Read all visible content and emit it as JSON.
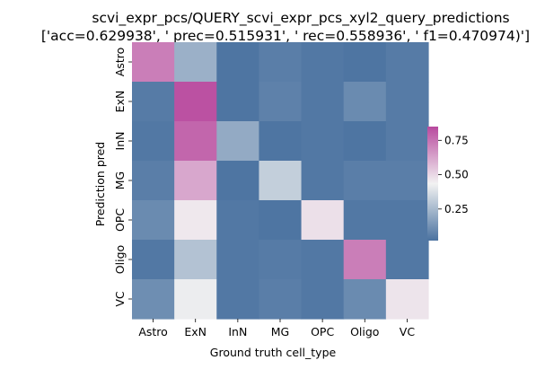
{
  "chart_data": {
    "type": "heatmap",
    "title_line1": "scvi_expr_pcs/QUERY_scvi_expr_pcs_xyl2_query_predictions",
    "title_line2": "['acc=0.629938', ' prec=0.515931', ' rec=0.558936', ' f1=0.470974)']",
    "xlabel": "Ground truth cell_type",
    "ylabel": "Prediction pred",
    "x_categories": [
      "Astro",
      "ExN",
      "InN",
      "MG",
      "OPC",
      "Oligo",
      "VC"
    ],
    "y_categories": [
      "Astro",
      "ExN",
      "InN",
      "MG",
      "OPC",
      "Oligo",
      "VC"
    ],
    "values": [
      [
        0.72,
        0.22,
        0.03,
        0.06,
        0.04,
        0.03,
        0.05
      ],
      [
        0.05,
        0.83,
        0.03,
        0.07,
        0.04,
        0.1,
        0.05
      ],
      [
        0.04,
        0.78,
        0.2,
        0.03,
        0.04,
        0.03,
        0.05
      ],
      [
        0.06,
        0.62,
        0.03,
        0.32,
        0.04,
        0.06,
        0.06
      ],
      [
        0.1,
        0.46,
        0.04,
        0.03,
        0.48,
        0.04,
        0.04
      ],
      [
        0.04,
        0.28,
        0.04,
        0.05,
        0.04,
        0.72,
        0.04
      ],
      [
        0.11,
        0.42,
        0.04,
        0.06,
        0.04,
        0.1,
        0.47
      ]
    ],
    "colorbar": {
      "vmin": 0.02,
      "vmax": 0.85,
      "ticks": [
        0.25,
        0.5,
        0.75
      ],
      "tick_labels": [
        "0.25",
        "0.50",
        "0.75"
      ],
      "colors": [
        "#4a72a0",
        "#f2f2f2",
        "#b8499e"
      ]
    }
  }
}
